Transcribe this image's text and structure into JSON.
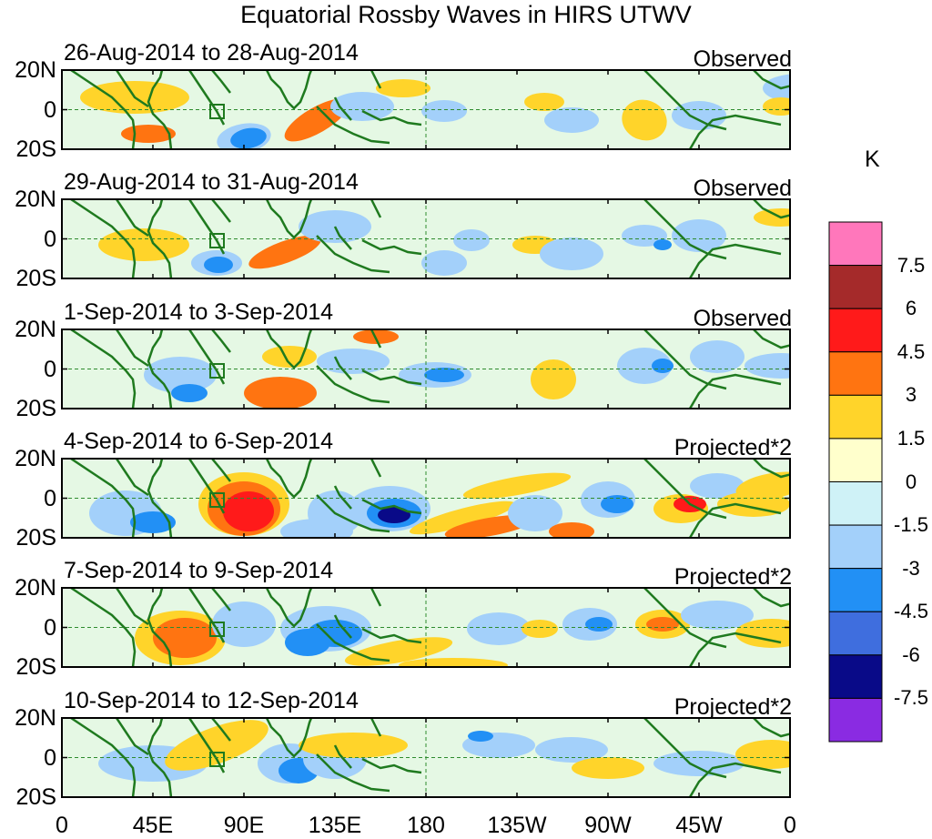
{
  "title": "Equatorial Rossby Waves in HIRS UTWV",
  "unit": "K",
  "panels": [
    {
      "date_range": "26-Aug-2014 to 28-Aug-2014",
      "type": "Observed"
    },
    {
      "date_range": "29-Aug-2014 to 31-Aug-2014",
      "type": "Observed"
    },
    {
      "date_range": "1-Sep-2014 to 3-Sep-2014",
      "type": "Observed"
    },
    {
      "date_range": "4-Sep-2014 to 6-Sep-2014",
      "type": "Projected*2"
    },
    {
      "date_range": "7-Sep-2014 to 9-Sep-2014",
      "type": "Projected*2"
    },
    {
      "date_range": "10-Sep-2014 to 12-Sep-2014",
      "type": "Projected*2"
    }
  ],
  "lat_labels": [
    "20N",
    "0",
    "20S"
  ],
  "lon_labels": [
    "0",
    "45E",
    "90E",
    "135E",
    "180",
    "135W",
    "90W",
    "45W",
    "0"
  ],
  "colorbar": {
    "labels": [
      "7.5",
      "6",
      "4.5",
      "3",
      "1.5",
      "0",
      "-1.5",
      "-3",
      "-4.5",
      "-6",
      "-7.5"
    ],
    "colors": [
      "#ff77bb",
      "#a52a2a",
      "#ff1a1a",
      "#ff7411",
      "#ffd42a",
      "#ffffcc",
      "#cff2f7",
      "#a3d0fa",
      "#2290f5",
      "#3f6ede",
      "#090a88",
      "#8a2be2"
    ],
    "units": "K"
  },
  "colors": {
    "coast": "#1f7a1f",
    "refline": "#2e8b2e"
  }
}
